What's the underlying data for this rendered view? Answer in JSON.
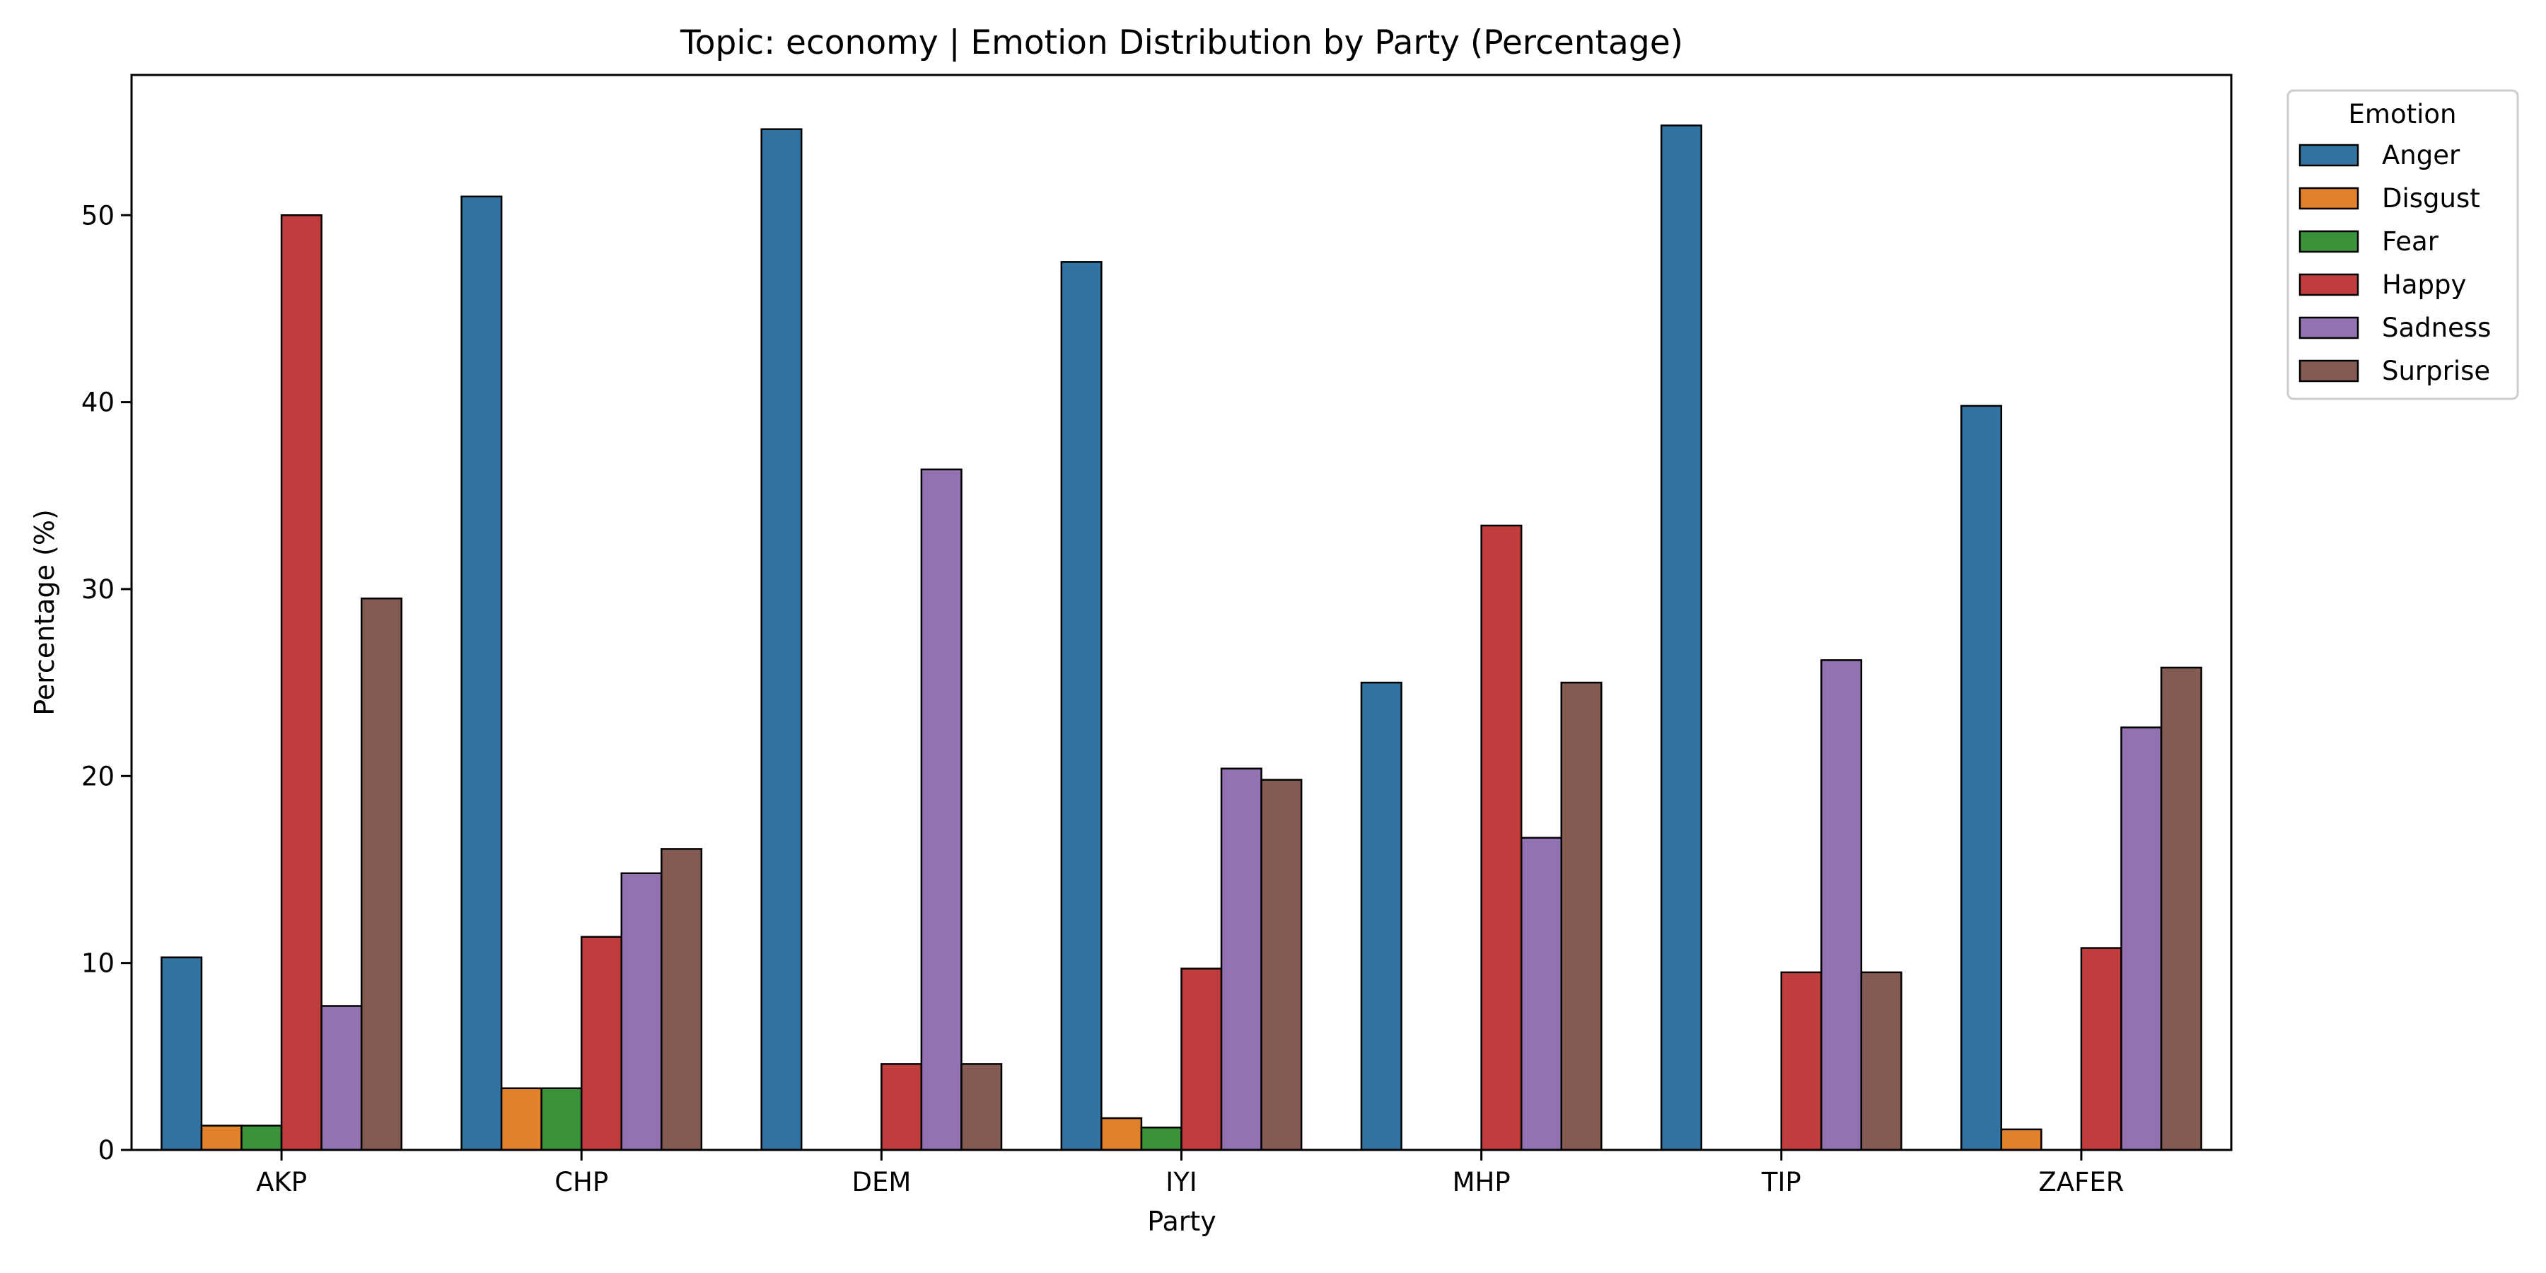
{
  "chart_data": {
    "type": "bar",
    "title": "Topic: economy | Emotion Distribution by Party (Percentage)",
    "xlabel": "Party",
    "ylabel": "Percentage (%)",
    "categories": [
      "AKP",
      "CHP",
      "DEM",
      "IYI",
      "MHP",
      "TIP",
      "ZAFER"
    ],
    "ylim": [
      0,
      57.5
    ],
    "yticks": [
      0,
      10,
      20,
      30,
      40,
      50
    ],
    "grid": false,
    "legend": {
      "title": "Emotion",
      "placement": "outside-top-right"
    },
    "series": [
      {
        "name": "Anger",
        "color": "#3274a1",
        "values": [
          10.3,
          51.0,
          54.6,
          47.5,
          25.0,
          54.8,
          39.8
        ]
      },
      {
        "name": "Disgust",
        "color": "#e1812c",
        "values": [
          1.3,
          3.3,
          0,
          1.7,
          0,
          0,
          1.1
        ]
      },
      {
        "name": "Fear",
        "color": "#3a923a",
        "values": [
          1.3,
          3.3,
          0,
          1.2,
          0,
          0,
          0
        ]
      },
      {
        "name": "Happy",
        "color": "#c03d3e",
        "values": [
          50.0,
          11.4,
          4.6,
          9.7,
          33.4,
          9.5,
          10.8
        ]
      },
      {
        "name": "Sadness",
        "color": "#9372b2",
        "values": [
          7.7,
          14.8,
          36.4,
          20.4,
          16.7,
          26.2,
          22.6
        ]
      },
      {
        "name": "Surprise",
        "color": "#845b53",
        "values": [
          29.5,
          16.1,
          4.6,
          19.8,
          25.0,
          9.5,
          25.8
        ]
      }
    ]
  }
}
